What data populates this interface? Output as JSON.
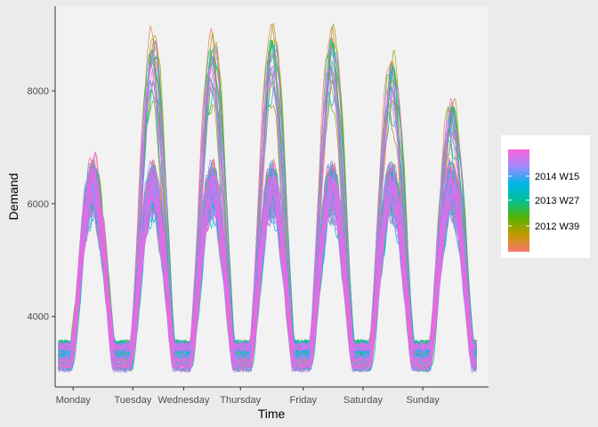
{
  "chart_data": {
    "type": "line",
    "title": "",
    "xlabel": "Time",
    "ylabel": "Demand",
    "ylim": [
      2750,
      9500
    ],
    "y_ticks": [
      4000,
      6000,
      8000
    ],
    "x_range_days": [
      -0.3,
      6.95
    ],
    "x_ticks": [
      {
        "day": 0,
        "label": "Monday"
      },
      {
        "day": 1,
        "label": "Tuesday"
      },
      {
        "day": 1.85,
        "label": "Wednesday"
      },
      {
        "day": 2.8,
        "label": "Thursday"
      },
      {
        "day": 3.85,
        "label": "Friday"
      },
      {
        "day": 4.85,
        "label": "Saturday"
      },
      {
        "day": 5.85,
        "label": "Sunday"
      }
    ],
    "series_description": "One line per week (2012 W01 to 2014 W26), coloured by week on a continuous scale",
    "daily_peaks_max": [
      {
        "day": "Monday",
        "peak": 6500
      },
      {
        "day": "Tuesday",
        "peak": 9200
      },
      {
        "day": "Wednesday",
        "peak": 9150
      },
      {
        "day": "Thursday",
        "peak": 9300
      },
      {
        "day": "Friday",
        "peak": 9250
      },
      {
        "day": "Saturday",
        "peak": 8700
      },
      {
        "day": "Sunday",
        "peak": 7800
      }
    ],
    "typical_range": {
      "trough": 3300,
      "peak": 6500
    },
    "legend": {
      "position": "right",
      "labels": [
        "2014 W15",
        "2013 W27",
        "2012 W39"
      ],
      "gradient_colors": [
        "#F8766D",
        "#C49A00",
        "#53B400",
        "#00C094",
        "#00B6EB",
        "#A58AFF",
        "#FB61D7"
      ]
    },
    "colors": {
      "panel": "#f2f2f2",
      "background": "#ebebeb",
      "axis": "#333333"
    }
  }
}
